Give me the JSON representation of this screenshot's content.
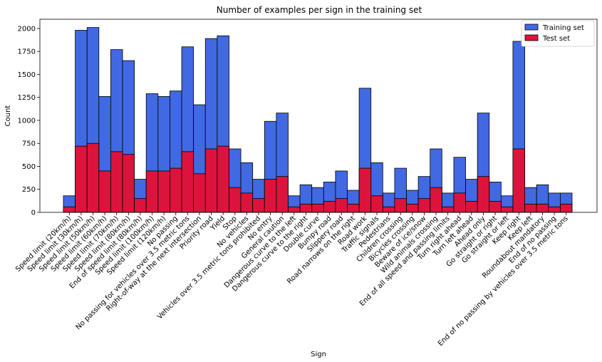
{
  "chart_data": {
    "type": "bar",
    "title": "Number of examples per sign in the training set",
    "xlabel": "Sign",
    "ylabel": "Count",
    "ylim": [
      0,
      2100
    ],
    "yticks": [
      0,
      250,
      500,
      750,
      1000,
      1250,
      1500,
      1750,
      2000
    ],
    "grid": false,
    "legend_position": "top-right",
    "categories": [
      "Speed limit (20km/h)",
      "Speed limit (30km/h)",
      "Speed limit (50km/h)",
      "Speed limit (60km/h)",
      "Speed limit (70km/h)",
      "Speed limit (80km/h)",
      "End of speed limit (80km/h)",
      "Speed limit (100km/h)",
      "Speed limit (120km/h)",
      "No passing",
      "No passing for vehicles over 3.5 metric tons",
      "Right-of-way at the next intersection",
      "Priority road",
      "Yield",
      "Stop",
      "No vehicles",
      "Vehicles over 3.5 metric tons prohibited",
      "No entry",
      "General caution",
      "Dangerous curve to the left",
      "Dangerous curve to the right",
      "Double curve",
      "Bumpy road",
      "Slippery road",
      "Road narrows on the right",
      "Road work",
      "Traffic signals",
      "Pedestrians",
      "Children crossing",
      "Bicycles crossing",
      "Beware of ice/snow",
      "Wild animals crossing",
      "End of all speed and passing limits",
      "Turn right ahead",
      "Turn left ahead",
      "Ahead only",
      "Go straight or right",
      "Go straight or left",
      "Keep right",
      "Keep left",
      "Roundabout mandatory",
      "End of no passing",
      "End of no passing by vehicles over 3.5 metric tons"
    ],
    "series": [
      {
        "name": "Training set",
        "color": "#4169e1",
        "values": [
          180,
          1980,
          2010,
          1260,
          1770,
          1650,
          360,
          1290,
          1260,
          1320,
          1800,
          1170,
          1890,
          1920,
          690,
          540,
          360,
          990,
          1080,
          180,
          300,
          270,
          330,
          450,
          240,
          1350,
          540,
          210,
          480,
          240,
          390,
          690,
          210,
          599,
          360,
          1080,
          330,
          180,
          1860,
          270,
          300,
          210,
          210
        ]
      },
      {
        "name": "Test set",
        "color": "#dc143c",
        "values": [
          60,
          720,
          750,
          450,
          660,
          630,
          150,
          450,
          450,
          480,
          660,
          420,
          690,
          720,
          270,
          210,
          150,
          360,
          390,
          60,
          90,
          90,
          120,
          150,
          90,
          480,
          180,
          60,
          150,
          90,
          150,
          270,
          60,
          210,
          120,
          390,
          120,
          60,
          690,
          90,
          90,
          60,
          90
        ]
      }
    ]
  }
}
